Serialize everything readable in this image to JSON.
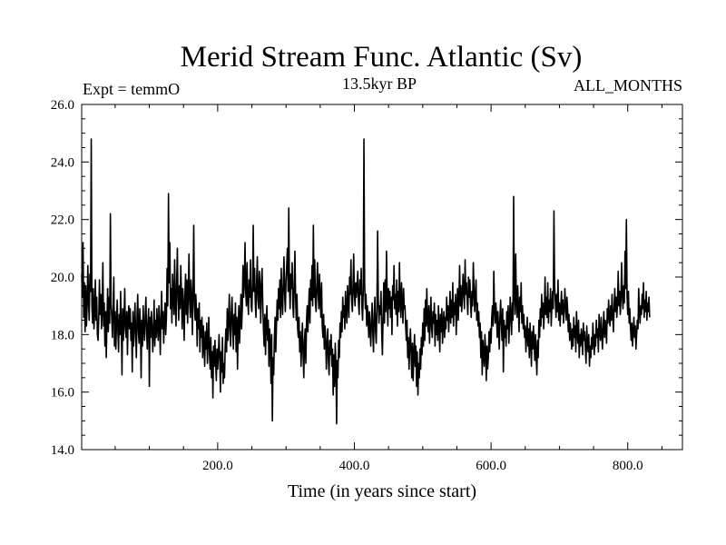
{
  "chart_data": {
    "type": "line",
    "title": "Merid Stream Func. Atlantic (Sv)",
    "subtitle": "13.5kyr BP",
    "left_label": "Expt = temmO",
    "right_label": "ALL_MONTHS",
    "xlabel": "Time (in years since start)",
    "ylabel": "",
    "xlim": [
      1,
      880
    ],
    "ylim": [
      14.0,
      26.0
    ],
    "x_ticks": [
      200,
      400,
      600,
      800
    ],
    "x_tick_labels": [
      "200.0",
      "400.0",
      "600.0",
      "800.0"
    ],
    "y_ticks": [
      14,
      16,
      18,
      20,
      22,
      24,
      26
    ],
    "y_tick_labels": [
      "14.0",
      "16.0",
      "18.0",
      "20.0",
      "22.0",
      "24.0",
      "26.0"
    ],
    "grid": false,
    "series": [
      {
        "x_start": 1,
        "x_step": 1,
        "values": [
          20.1,
          19.3,
          21.2,
          18.6,
          19.8,
          18.1,
          19.7,
          18.3,
          19.0,
          20.4,
          19.2,
          18.5,
          20.1,
          19.5,
          24.8,
          19.0,
          18.4,
          19.6,
          18.2,
          18.8,
          19.9,
          18.5,
          19.3,
          18.0,
          17.8,
          18.6,
          19.9,
          18.7,
          19.4,
          18.2,
          18.9,
          20.5,
          18.3,
          19.1,
          17.6,
          18.8,
          17.2,
          18.5,
          19.6,
          18.1,
          19.3,
          18.4,
          22.2,
          19.1,
          18.6,
          17.9,
          18.9,
          20.0,
          17.6,
          18.8,
          17.5,
          18.4,
          19.2,
          18.1,
          17.4,
          18.7,
          18.0,
          19.5,
          18.3,
          16.6,
          18.9,
          17.8,
          18.5,
          19.6,
          18.2,
          17.9,
          18.8,
          17.3,
          18.6,
          19.0,
          18.2,
          18.9,
          17.8,
          18.4,
          16.7,
          18.8,
          17.6,
          18.3,
          19.1,
          18.0,
          17.2,
          18.6,
          19.4,
          18.1,
          17.7,
          18.9,
          18.3,
          16.5,
          18.5,
          17.6,
          19.0,
          18.2,
          17.8,
          18.7,
          19.3,
          18.1,
          17.5,
          18.4,
          18.9,
          16.2,
          18.6,
          17.9,
          18.8,
          18.3,
          17.4,
          18.1,
          19.2,
          17.6,
          18.5,
          17.9,
          18.9,
          18.3,
          17.8,
          19.0,
          18.4,
          17.3,
          18.6,
          19.5,
          18.2,
          18.8,
          17.7,
          18.5,
          19.1,
          18.0,
          18.6,
          20.3,
          19.0,
          22.9,
          19.8,
          21.2,
          18.9,
          19.6,
          18.4,
          20.1,
          19.3,
          18.7,
          20.6,
          19.1,
          18.3,
          19.8,
          21.0,
          19.2,
          18.5,
          19.7,
          18.9,
          20.4,
          19.4,
          18.2,
          19.6,
          19.0,
          17.8,
          19.3,
          20.1,
          18.7,
          19.9,
          18.4,
          19.5,
          20.8,
          19.1,
          18.6,
          19.9,
          19.3,
          18.0,
          19.7,
          21.8,
          19.0,
          18.5,
          19.4,
          18.8,
          17.6,
          18.9,
          18.2,
          19.1,
          17.4,
          18.5,
          17.9,
          18.6,
          17.2,
          18.3,
          17.7,
          16.9,
          18.1,
          17.5,
          18.4,
          17.0,
          17.8,
          18.6,
          17.3,
          16.8,
          17.9,
          16.5,
          17.4,
          15.8,
          17.6,
          16.9,
          17.8,
          17.1,
          16.4,
          17.5,
          16.8,
          17.3,
          18.0,
          17.2,
          16.0,
          17.4,
          16.7,
          17.9,
          16.3,
          17.0,
          16.5,
          17.6,
          18.2,
          17.4,
          18.9,
          17.8,
          18.5,
          19.4,
          18.1,
          17.6,
          18.8,
          19.3,
          18.2,
          17.5,
          18.7,
          18.0,
          19.1,
          17.4,
          18.6,
          16.8,
          18.3,
          19.0,
          17.7,
          18.5,
          19.4,
          18.2,
          18.9,
          20.4,
          19.3,
          19.8,
          21.2,
          19.5,
          19.0,
          20.5,
          19.2,
          18.7,
          19.9,
          19.3,
          20.6,
          19.0,
          18.8,
          19.7,
          21.8,
          19.5,
          20.3,
          19.1,
          18.6,
          19.9,
          20.7,
          19.2,
          18.9,
          20.2,
          19.6,
          18.4,
          19.8,
          20.3,
          19.0,
          18.2,
          17.6,
          18.7,
          17.3,
          18.4,
          19.0,
          17.8,
          18.5,
          16.9,
          18.2,
          17.7,
          16.3,
          18.0,
          15.0,
          17.2,
          16.6,
          17.9,
          18.6,
          17.4,
          18.3,
          19.2,
          18.5,
          19.6,
          18.9,
          19.9,
          18.6,
          20.3,
          19.2,
          18.7,
          19.8,
          20.7,
          19.4,
          18.8,
          19.9,
          20.4,
          21.0,
          19.5,
          22.4,
          19.7,
          18.9,
          20.1,
          19.6,
          20.5,
          19.0,
          18.6,
          19.8,
          20.9,
          19.3,
          18.5,
          19.4,
          18.2,
          17.9,
          18.6,
          17.4,
          18.1,
          16.9,
          17.7,
          18.4,
          17.3,
          16.5,
          17.8,
          18.2,
          17.0,
          18.5,
          19.0,
          18.1,
          18.9,
          19.6,
          18.4,
          19.9,
          19.2,
          20.4,
          19.0,
          21.8,
          19.3,
          20.6,
          19.1,
          18.8,
          19.7,
          20.5,
          19.4,
          18.9,
          20.1,
          19.2,
          18.6,
          19.8,
          18.3,
          17.9,
          18.7,
          17.5,
          18.3,
          17.9,
          16.8,
          17.6,
          18.2,
          17.1,
          16.6,
          17.8,
          17.3,
          18.0,
          16.9,
          17.5,
          15.9,
          17.3,
          16.2,
          17.7,
          17.0,
          14.9,
          17.1,
          16.5,
          17.8,
          17.2,
          18.4,
          17.9,
          18.8,
          18.1,
          19.3,
          18.6,
          19.0,
          18.2,
          19.5,
          18.9,
          18.4,
          19.7,
          19.1,
          18.6,
          20.0,
          19.4,
          20.6,
          19.2,
          18.8,
          19.6,
          20.8,
          19.4,
          19.0,
          19.8,
          19.3,
          19.7,
          20.2,
          19.1,
          18.7,
          19.9,
          19.4,
          20.3,
          19.0,
          18.5,
          19.6,
          24.8,
          19.8,
          18.9,
          19.4,
          18.3,
          19.0,
          18.6,
          17.9,
          18.8,
          18.2,
          17.6,
          18.5,
          19.1,
          18.0,
          17.4,
          18.7,
          19.3,
          18.1,
          17.7,
          18.9,
          21.6,
          19.2,
          18.4,
          19.0,
          18.7,
          19.5,
          18.1,
          17.3,
          18.6,
          19.8,
          18.4,
          19.9,
          18.8,
          20.9,
          19.2,
          18.3,
          19.6,
          18.9,
          19.5,
          18.6,
          19.3,
          18.0,
          19.7,
          19.2,
          20.4,
          18.9,
          19.4,
          18.7,
          19.9,
          18.3,
          19.5,
          18.8,
          20.5,
          19.1,
          18.6,
          19.8,
          19.2,
          18.4,
          19.6,
          18.9,
          19.0,
          18.3,
          17.8,
          18.5,
          17.2,
          17.9,
          16.8,
          17.6,
          18.2,
          17.4,
          16.5,
          17.7,
          16.4,
          17.3,
          18.0,
          16.9,
          17.6,
          16.2,
          17.4,
          15.9,
          17.0,
          16.5,
          17.5,
          16.8,
          17.9,
          17.3,
          18.4,
          17.6,
          18.9,
          17.8,
          19.2,
          18.3,
          19.6,
          18.5,
          18.1,
          19.0,
          17.7,
          18.6,
          19.3,
          18.2,
          17.9,
          18.8,
          18.4,
          19.1,
          17.6,
          18.7,
          18.0,
          18.5,
          17.8,
          19.0,
          18.3,
          17.4,
          18.7,
          18.1,
          18.9,
          17.7,
          18.4,
          18.8,
          17.9,
          18.6,
          18.2,
          19.3,
          18.5,
          19.0,
          18.1,
          18.8,
          19.5,
          18.4,
          19.2,
          18.6,
          19.8,
          18.3,
          19.1,
          18.7,
          19.4,
          18.0,
          18.9,
          19.6,
          18.5,
          19.2,
          20.4,
          19.0,
          19.7,
          18.8,
          19.3,
          20.1,
          19.5,
          18.9,
          20.6,
          19.4,
          19.8,
          19.2,
          18.7,
          20.0,
          19.3,
          19.9,
          19.1,
          18.6,
          19.5,
          19.0,
          20.5,
          19.6,
          18.8,
          19.4,
          19.9,
          18.5,
          19.1,
          18.3,
          18.8,
          17.9,
          18.4,
          17.2,
          18.1,
          16.6,
          17.8,
          17.3,
          16.9,
          18.0,
          17.5,
          16.4,
          17.6,
          16.8,
          17.2,
          18.1,
          17.4,
          18.2,
          17.7,
          18.6,
          19.0,
          18.3,
          20.2,
          18.9,
          18.4,
          19.1,
          18.7,
          17.9,
          18.8,
          18.2,
          17.5,
          18.6,
          19.2,
          18.4,
          17.8,
          18.9,
          16.7,
          18.5,
          17.9,
          18.3,
          17.6,
          18.8,
          18.2,
          19.0,
          17.7,
          18.4,
          19.3,
          18.6,
          18.0,
          19.1,
          18.5,
          22.8,
          19.4,
          18.7,
          20.8,
          19.2,
          18.6,
          19.7,
          18.9,
          18.1,
          19.3,
          18.8,
          19.8,
          18.4,
          19.0,
          18.2,
          18.7,
          17.9,
          18.3,
          17.4,
          18.0,
          18.6,
          17.6,
          18.2,
          17.2,
          18.4,
          17.8,
          16.9,
          18.1,
          17.5,
          18.3,
          17.7,
          17.1,
          18.0,
          17.3,
          16.6,
          17.8,
          17.2,
          18.5,
          17.9,
          18.9,
          18.3,
          19.4,
          18.6,
          19.1,
          18.2,
          18.8,
          20.0,
          18.7,
          19.3,
          18.6,
          19.8,
          18.4,
          19.2,
          18.8,
          19.6,
          18.3,
          19.0,
          19.5,
          18.9,
          22.3,
          19.7,
          19.2,
          18.6,
          19.4,
          18.8,
          19.9,
          18.5,
          19.1,
          18.3,
          18.9,
          19.5,
          18.7,
          19.2,
          18.4,
          18.8,
          19.6,
          19.0,
          18.5,
          19.3,
          18.9,
          18.1,
          18.7,
          17.8,
          18.4,
          18.0,
          17.5,
          18.2,
          17.6,
          18.6,
          17.9,
          18.3,
          17.4,
          18.8,
          18.1,
          17.7,
          18.5,
          17.2,
          18.0,
          17.6,
          18.2,
          17.9,
          17.3,
          18.4,
          17.8,
          18.1,
          17.5,
          17.0,
          18.3,
          17.7,
          17.4,
          18.0,
          16.9,
          17.6,
          17.2,
          17.9,
          17.5,
          18.4,
          17.8,
          17.3,
          18.0,
          17.6,
          18.5,
          17.9,
          18.2,
          17.4,
          18.7,
          18.1,
          17.8,
          18.6,
          18.0,
          17.5,
          18.3,
          18.8,
          17.9,
          18.5,
          18.2,
          17.7,
          18.9,
          18.4,
          19.2,
          18.6,
          18.3,
          19.0,
          18.5,
          19.4,
          18.7,
          18.1,
          18.9,
          19.6,
          18.8,
          19.3,
          18.6,
          19.1,
          20.2,
          19.0,
          19.5,
          18.7,
          19.2,
          20.5,
          19.4,
          18.9,
          19.7,
          19.1,
          20.9,
          19.6,
          22.0,
          19.3,
          18.7,
          19.5,
          18.4,
          18.9,
          18.2,
          17.8,
          18.4,
          17.6,
          18.1,
          18.6,
          17.9,
          18.3,
          17.5,
          18.0,
          18.5,
          18.2,
          19.6,
          18.8,
          18.4,
          19.0,
          18.7,
          19.4,
          18.9,
          19.8,
          18.6,
          19.2,
          18.8,
          19.5,
          18.5,
          19.1,
          18.8,
          19.3,
          18.6
        ]
      }
    ]
  }
}
